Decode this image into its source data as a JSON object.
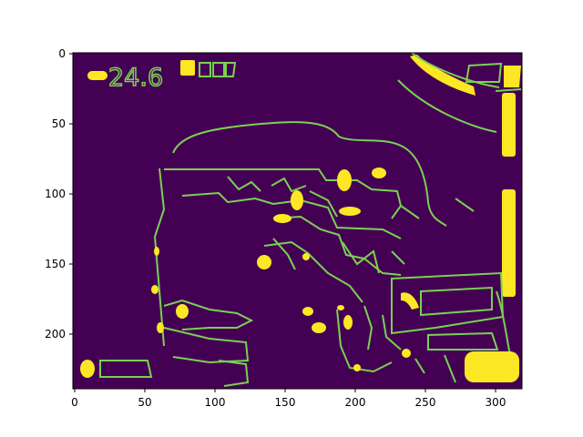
{
  "figure": {
    "background": "#ffffff",
    "colors": {
      "background_value": "#440154",
      "foreground_value": "#fde725",
      "edge_value": "#7ad151",
      "axis": "#000000"
    },
    "colormap": "viridis"
  },
  "chart_data": {
    "type": "heatmap",
    "title": "",
    "xlabel": "",
    "ylabel": "",
    "xlim": [
      0,
      320
    ],
    "ylim": [
      240,
      0
    ],
    "x_ticks": [
      "0",
      "50",
      "100",
      "150",
      "200",
      "250",
      "300"
    ],
    "y_ticks": [
      "0",
      "50",
      "100",
      "150",
      "200"
    ],
    "grid": false,
    "legend": "none",
    "content": "segmentation/edge mask image with yellow filled blobs and green contour lines on a dark purple background",
    "embedded_text": "24.6"
  }
}
